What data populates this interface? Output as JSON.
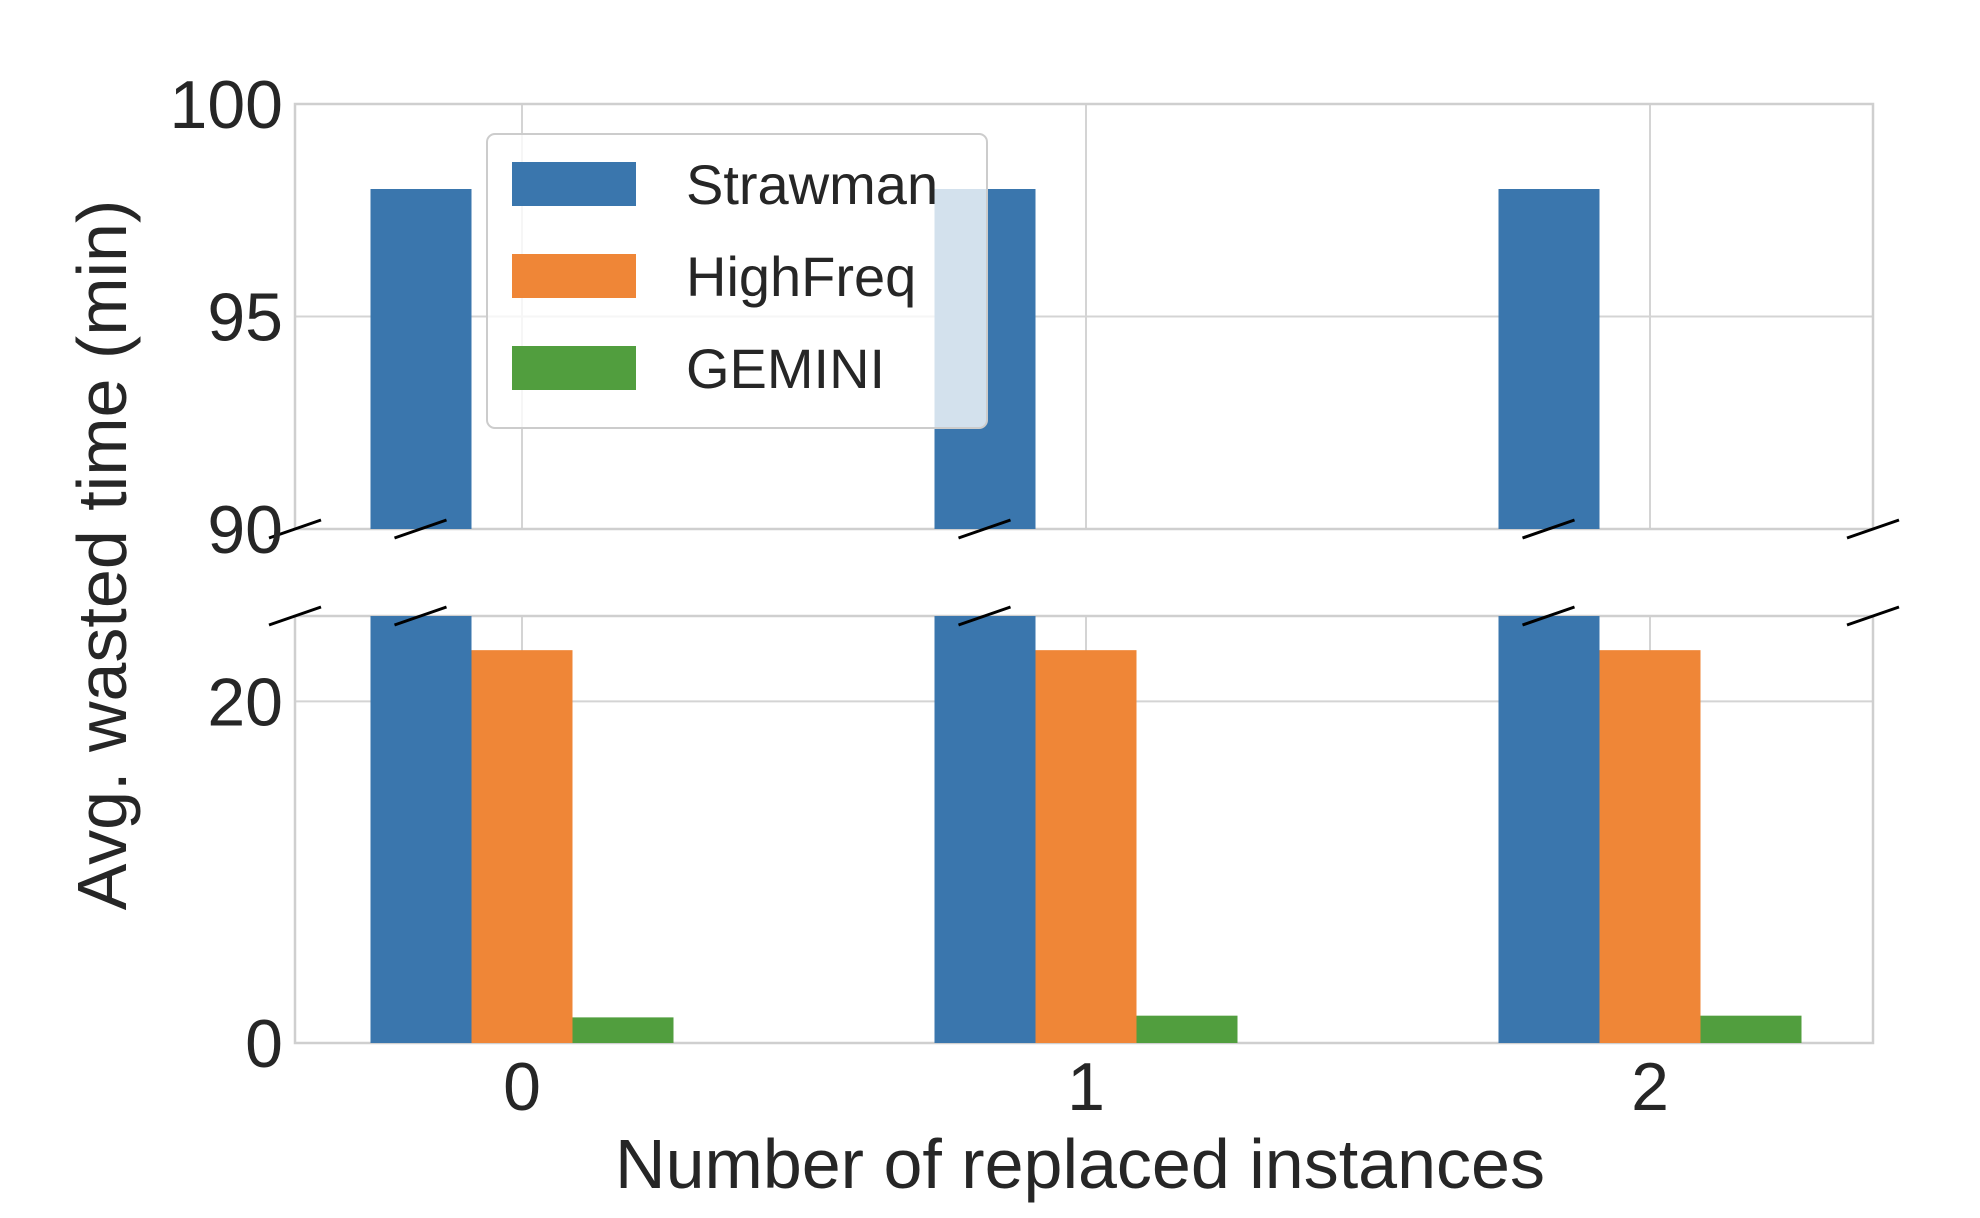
{
  "chart_data": {
    "type": "bar",
    "xlabel": "Number of replaced instances",
    "ylabel": "Avg. wasted time (min)",
    "categories": [
      "0",
      "1",
      "2"
    ],
    "series": [
      {
        "name": "Strawman",
        "color": "#3a76ad",
        "values": [
          98,
          98,
          98
        ]
      },
      {
        "name": "HighFreq",
        "color": "#ef8637",
        "values": [
          23,
          23,
          23
        ]
      },
      {
        "name": "GEMINI",
        "color": "#519e3e",
        "values": [
          1.5,
          1.6,
          1.6
        ]
      }
    ],
    "broken_y_axis": true,
    "ylim_upper": [
      90,
      100
    ],
    "ylim_lower": [
      0,
      25
    ],
    "yticks_upper": [
      "90",
      "95",
      "100"
    ],
    "yticks_lower": [
      "0",
      "20"
    ],
    "grid": true,
    "legend_position": "upper left"
  }
}
